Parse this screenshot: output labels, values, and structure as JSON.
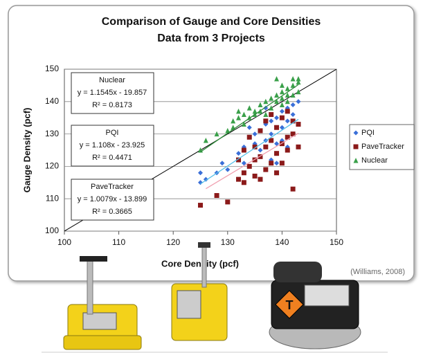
{
  "chart_data": {
    "type": "scatter",
    "title": "Comparison of Gauge and Core Densities",
    "subtitle": "Data from 3 Projects",
    "x_label": "Core Density (pcf)",
    "y_label": "Gauge Density (pcf)",
    "source": "(Williams, 2008)",
    "xlim": [
      100,
      150
    ],
    "xticks": [
      100,
      110,
      120,
      130,
      140,
      150
    ],
    "ylim": [
      100,
      150
    ],
    "yticks": [
      100,
      110,
      120,
      130,
      140,
      150
    ],
    "grid": true,
    "legend": "right",
    "equality_line": {
      "x": [
        100,
        150
      ],
      "y": [
        100,
        150
      ],
      "color": "#000000"
    },
    "series": [
      {
        "name": "PQI",
        "color": "#3a6fd8",
        "marker": "diamond",
        "x": [
          125,
          125,
          126,
          128,
          129,
          130,
          132,
          133,
          133,
          134,
          134,
          135,
          135,
          136,
          136,
          137,
          137,
          138,
          138,
          138,
          139,
          139,
          139,
          140,
          140,
          140,
          141,
          141,
          141,
          142,
          142,
          142,
          143,
          143,
          139,
          137
        ],
        "values": [
          115,
          118,
          116,
          118,
          121,
          119,
          124,
          126,
          121,
          129,
          132,
          127,
          130,
          125,
          131,
          133,
          128,
          122,
          134,
          130,
          121,
          127,
          135,
          132,
          128,
          137,
          126,
          134,
          138,
          130,
          136,
          139,
          133,
          140,
          124,
          138
        ],
        "trend": {
          "x": [
            125,
            143
          ],
          "y": [
            114.58,
            134.52
          ],
          "color": "#55c0e8"
        }
      },
      {
        "name": "PaveTracker",
        "color": "#8b1a1a",
        "marker": "square",
        "x": [
          125,
          128,
          130,
          132,
          132,
          133,
          133,
          133,
          134,
          134,
          135,
          135,
          135,
          136,
          136,
          137,
          137,
          137,
          138,
          138,
          138,
          139,
          139,
          139,
          140,
          140,
          140,
          141,
          141,
          141,
          142,
          142,
          142,
          143,
          143,
          136
        ],
        "values": [
          108,
          111,
          109,
          116,
          122,
          115,
          125,
          118,
          120,
          129,
          122,
          126,
          117,
          123,
          131,
          119,
          126,
          134,
          121,
          128,
          136,
          124,
          132,
          118,
          127,
          135,
          121,
          129,
          137,
          125,
          113,
          130,
          134,
          133,
          126,
          116
        ],
        "trend": {
          "x": [
            126,
            143
          ],
          "y": [
            113.1,
            130.23
          ],
          "color": "#f0a0b0"
        }
      },
      {
        "name": "Nuclear",
        "color": "#3aa04a",
        "marker": "triangle",
        "x": [
          125,
          126,
          128,
          130,
          131,
          132,
          132,
          133,
          133,
          134,
          134,
          135,
          135,
          136,
          136,
          137,
          138,
          138,
          139,
          139,
          139,
          140,
          140,
          140,
          141,
          141,
          141,
          142,
          142,
          142,
          143,
          143,
          143,
          131,
          137,
          140
        ],
        "values": [
          125,
          128,
          130,
          131,
          134,
          135,
          137,
          133,
          136,
          135,
          138,
          136,
          137,
          137,
          139,
          140,
          138,
          141,
          140,
          142,
          147,
          139,
          141,
          143,
          142,
          144,
          140,
          142,
          145,
          147,
          143,
          146,
          147,
          132,
          136,
          145
        ],
        "trend": {
          "x": [
            125,
            143
          ],
          "y": [
            124.45,
            145.24
          ],
          "color": "#2e8b3a"
        }
      }
    ],
    "annotations": [
      [
        "Nuclear",
        "y = 1.1545x - 19.857",
        "R² = 0.8173"
      ],
      [
        "PQI",
        "y = 1.108x - 23.925",
        "R² = 0.4471"
      ],
      [
        "PaveTracker",
        "y = 1.0079x - 13.899",
        "R² = 0.3665"
      ]
    ]
  }
}
